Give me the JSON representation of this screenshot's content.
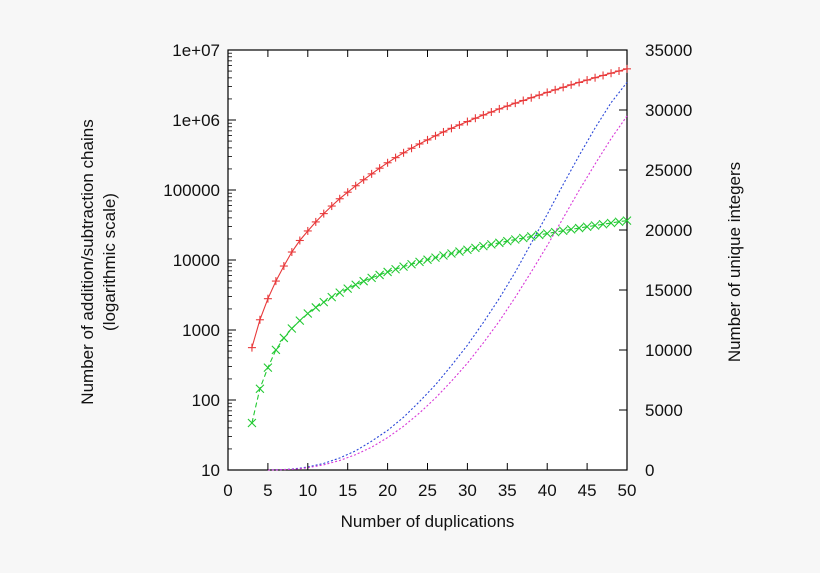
{
  "chart_data": {
    "type": "line",
    "title": "",
    "xlabel": "Number of duplications",
    "ylabel_lines": [
      "Number of addition/subtraction chains",
      "(logarithmic scale)"
    ],
    "y2label": "Number of unique integers",
    "xlim": [
      0,
      50
    ],
    "ylim": [
      10,
      10000000
    ],
    "y_scale": "log",
    "y2lim": [
      0,
      35000
    ],
    "grid": false,
    "legend": "none",
    "x_ticks": [
      "0",
      "5",
      "10",
      "15",
      "20",
      "25",
      "30",
      "35",
      "40",
      "45",
      "50"
    ],
    "y_ticks": [
      "10",
      "100",
      "1000",
      "10000",
      "100000",
      "1e+06",
      "1e+07"
    ],
    "y2_ticks": [
      "0",
      "5000",
      "10000",
      "15000",
      "20000",
      "25000",
      "30000",
      "35000"
    ],
    "series": [
      {
        "axis": "left",
        "color": "#e8393a",
        "marker": "plus",
        "line": "solid",
        "x": [
          3,
          4,
          5,
          6,
          7,
          8,
          9,
          10,
          11,
          12,
          13,
          14,
          15,
          16,
          17,
          18,
          19,
          20,
          21,
          22,
          23,
          24,
          25,
          26,
          27,
          28,
          29,
          30,
          31,
          32,
          33,
          34,
          35,
          36,
          37,
          38,
          39,
          40,
          41,
          42,
          43,
          44,
          45,
          46,
          47,
          48,
          49,
          50
        ],
        "values": [
          560,
          1400,
          2800,
          5000,
          8200,
          13000,
          19000,
          26000,
          35000,
          46000,
          59000,
          75000,
          93000,
          115000,
          140000,
          170000,
          205000,
          245000,
          290000,
          340000,
          395000,
          455000,
          520000,
          595000,
          675000,
          760000,
          850000,
          950000,
          1060000,
          1180000,
          1300000,
          1440000,
          1580000,
          1740000,
          1900000,
          2080000,
          2270000,
          2480000,
          2700000,
          2930000,
          3180000,
          3440000,
          3720000,
          4020000,
          4330000,
          4660000,
          5010000,
          5380000
        ]
      },
      {
        "axis": "left",
        "color": "#22c932",
        "marker": "cross",
        "line": "dashed",
        "x": [
          3,
          4,
          5,
          6,
          7,
          8,
          9,
          10,
          11,
          12,
          13,
          14,
          15,
          16,
          17,
          18,
          19,
          20,
          21,
          22,
          23,
          24,
          25,
          26,
          27,
          28,
          29,
          30,
          31,
          32,
          33,
          34,
          35,
          36,
          37,
          38,
          39,
          40,
          41,
          42,
          43,
          44,
          45,
          46,
          47,
          48,
          49,
          50
        ],
        "values": [
          47,
          145,
          290,
          520,
          770,
          1050,
          1360,
          1720,
          2100,
          2500,
          2950,
          3420,
          3900,
          4430,
          4980,
          5550,
          6120,
          6750,
          7380,
          8050,
          8700,
          9400,
          10100,
          10800,
          11600,
          12400,
          13200,
          14000,
          14900,
          15800,
          16700,
          17600,
          18600,
          19600,
          20600,
          21700,
          22800,
          23900,
          25000,
          26200,
          27400,
          28600,
          29900,
          31100,
          32400,
          33800,
          35200,
          36500
        ]
      },
      {
        "axis": "right",
        "color": "#2a47d8",
        "marker": "none",
        "line": "dotted",
        "x": [
          5,
          6,
          7,
          8,
          9,
          10,
          12,
          14,
          16,
          18,
          20,
          22,
          24,
          26,
          28,
          30,
          32,
          34,
          36,
          38,
          40,
          42,
          44,
          46,
          48,
          50
        ],
        "values": [
          0,
          15,
          40,
          80,
          150,
          250,
          550,
          1000,
          1600,
          2400,
          3300,
          4400,
          5700,
          7100,
          8700,
          10400,
          12300,
          14300,
          16500,
          18900,
          21300,
          23800,
          26200,
          28500,
          30600,
          32300
        ]
      },
      {
        "axis": "right",
        "color": "#d838d8",
        "marker": "none",
        "line": "dotted",
        "x": [
          5,
          6,
          7,
          8,
          9,
          10,
          12,
          14,
          16,
          18,
          20,
          22,
          24,
          26,
          28,
          30,
          32,
          34,
          36,
          38,
          40,
          42,
          44,
          46,
          48,
          50
        ],
        "values": [
          0,
          10,
          30,
          60,
          110,
          190,
          430,
          790,
          1280,
          1900,
          2700,
          3650,
          4750,
          6000,
          7400,
          8900,
          10600,
          12400,
          14400,
          16500,
          18700,
          21000,
          23300,
          25500,
          27600,
          29500
        ]
      }
    ]
  }
}
